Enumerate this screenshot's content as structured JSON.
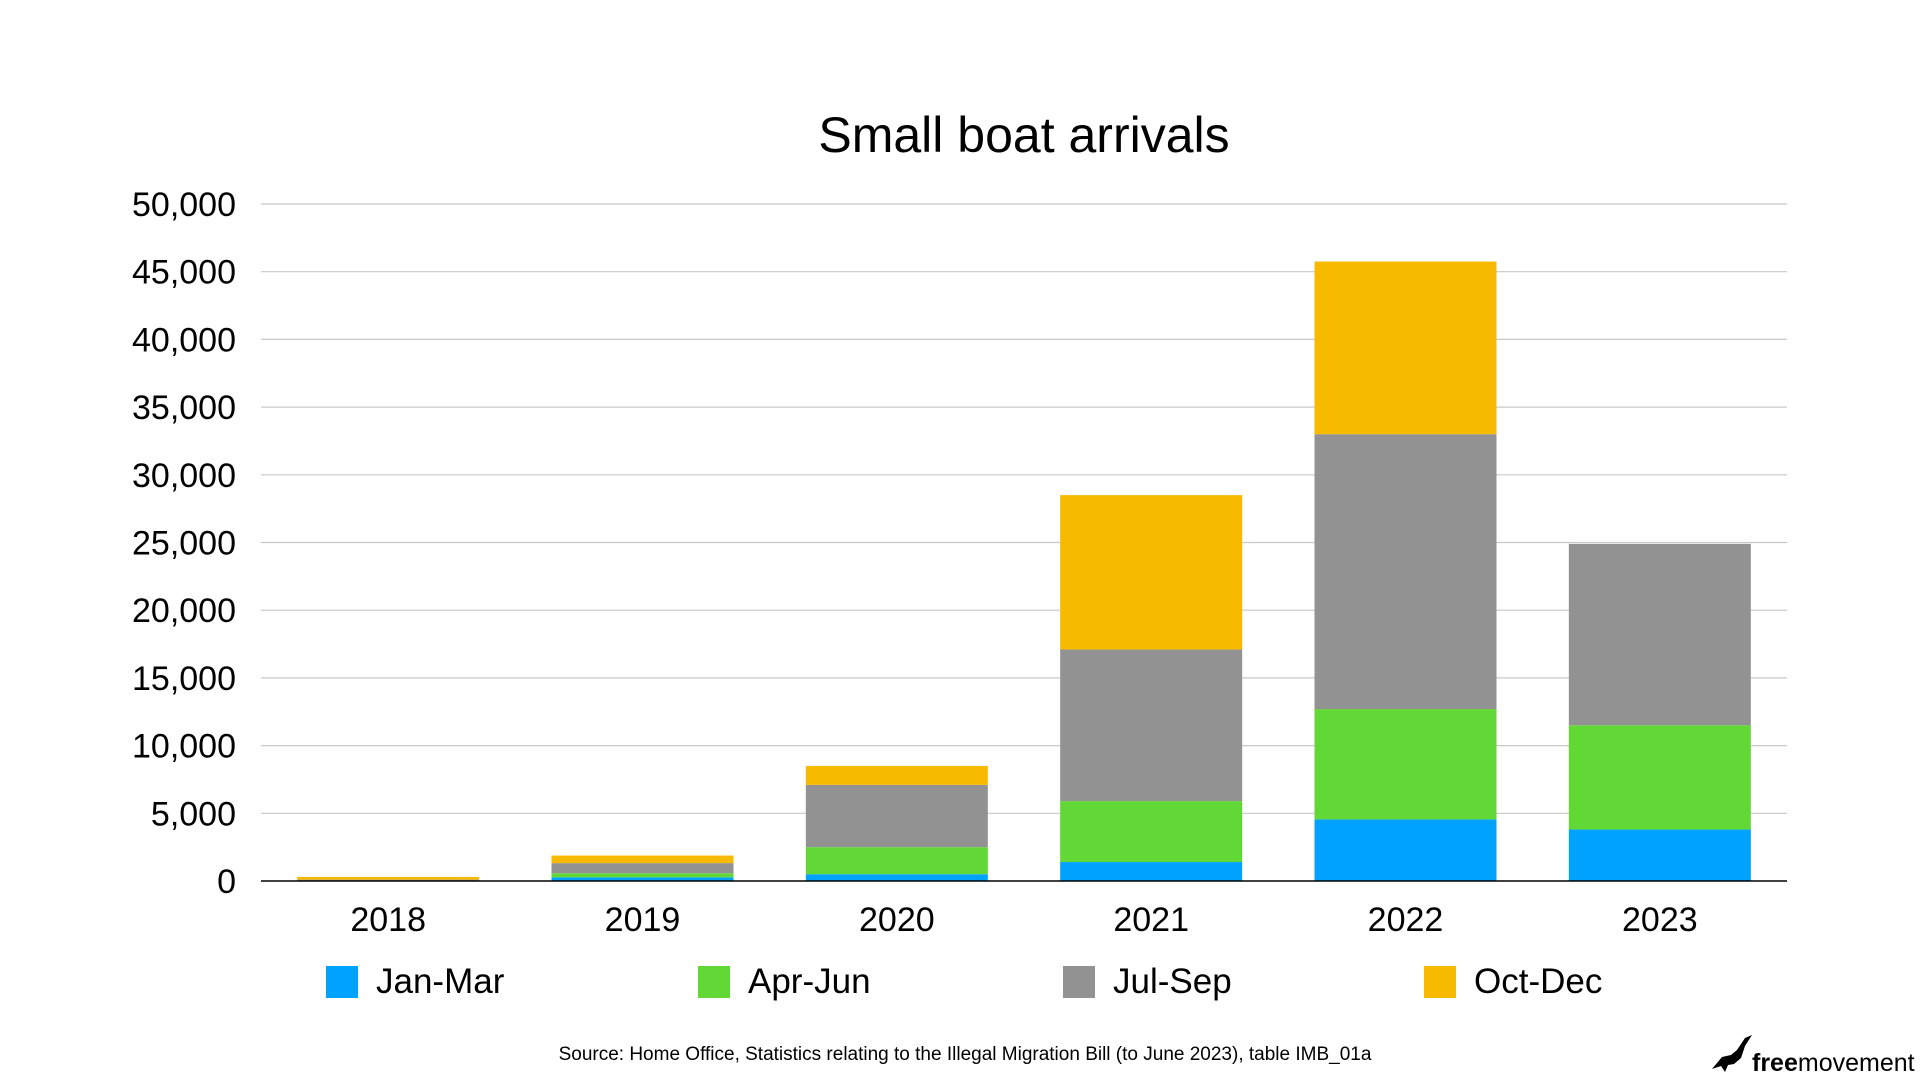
{
  "chart_data": {
    "type": "bar",
    "stacked": true,
    "title": "Small boat arrivals",
    "xlabel": "",
    "ylabel": "",
    "categories": [
      "2018",
      "2019",
      "2020",
      "2021",
      "2022",
      "2023"
    ],
    "series": [
      {
        "name": "Jan-Mar",
        "color": "#00a2ff",
        "values": [
          0,
          270,
          500,
          1400,
          4550,
          3800
        ]
      },
      {
        "name": "Apr-Jun",
        "color": "#61d836",
        "values": [
          20,
          300,
          2000,
          4500,
          8150,
          7700
        ]
      },
      {
        "name": "Jul-Sep",
        "color": "#929292",
        "values": [
          80,
          750,
          4600,
          11200,
          20300,
          13400
        ]
      },
      {
        "name": "Oct-Dec",
        "color": "#f8ba00",
        "values": [
          200,
          560,
          1400,
          11400,
          12750,
          0
        ]
      }
    ],
    "ylim": [
      0,
      50000
    ],
    "yticks": [
      0,
      5000,
      10000,
      15000,
      20000,
      25000,
      30000,
      35000,
      40000,
      45000,
      50000
    ],
    "ytick_labels": [
      "0",
      "5,000",
      "10,000",
      "15,000",
      "20,000",
      "25,000",
      "30,000",
      "35,000",
      "40,000",
      "45,000",
      "50,000"
    ],
    "grid": true,
    "legend_position": "bottom"
  },
  "source_note": "Source: Home Office, Statistics relating to the Illegal Migration Bill (to June 2023), table IMB_01a",
  "logo": {
    "text_bold": "free",
    "text_regular": "movement",
    "icon": "bird-icon"
  }
}
